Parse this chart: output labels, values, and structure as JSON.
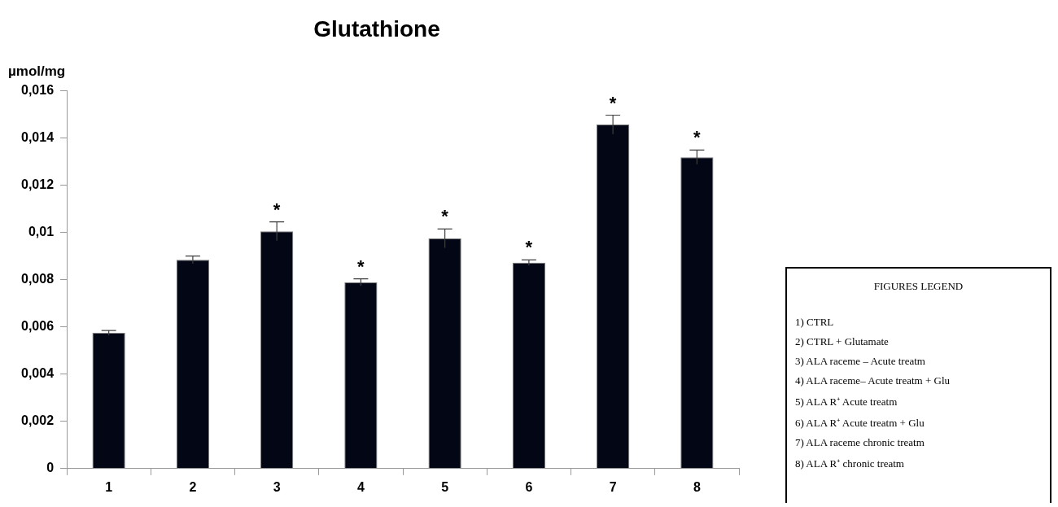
{
  "chart_data": {
    "type": "bar",
    "title": "Glutathione",
    "ylabel": "µmol/mg",
    "categories": [
      "1",
      "2",
      "3",
      "4",
      "5",
      "6",
      "7",
      "8"
    ],
    "values": [
      0.00575,
      0.00884,
      0.01005,
      0.00789,
      0.00975,
      0.00872,
      0.01457,
      0.01319
    ],
    "errors": [
      0.0001,
      0.00016,
      0.0004,
      0.00015,
      0.0004,
      0.00012,
      0.0004,
      0.0003
    ],
    "color": "#020615",
    "ylim": [
      0,
      0.016
    ],
    "yticks": [
      {
        "value": 0,
        "label": "0"
      },
      {
        "value": 0.002,
        "label": "0,002"
      },
      {
        "value": 0.004,
        "label": "0,004"
      },
      {
        "value": 0.006,
        "label": "0,006"
      },
      {
        "value": 0.008,
        "label": "0,008"
      },
      {
        "value": 0.01,
        "label": "0,01"
      },
      {
        "value": 0.012,
        "label": "0,012"
      },
      {
        "value": 0.014,
        "label": "0,014"
      },
      {
        "value": 0.016,
        "label": "0,016"
      }
    ],
    "grid": false,
    "legend": false,
    "annotations": [
      {
        "text": "*",
        "x": "3",
        "y": 0.01005
      },
      {
        "text": "*",
        "x": "4",
        "y": 0.00789
      },
      {
        "text": "*",
        "x": "5",
        "y": 0.00975
      },
      {
        "text": "*",
        "x": "6",
        "y": 0.00872
      },
      {
        "text": "*",
        "x": "7",
        "y": 0.01457
      },
      {
        "text": "*",
        "x": "8",
        "y": 0.01319
      },
      "FIGURES LEGEND",
      "1) CTRL",
      "2) CTRL + Glutamate",
      "3) ALA raceme – Acute treatm",
      "4) ALA raceme– Acute treatm + Glu",
      "5) ALA R⁺ Acute treatm",
      "6) ALA R⁺ Acute treatm + Glu",
      "7) ALA raceme  chronic treatm",
      "8) ALA R⁺  chronic treatm"
    ]
  }
}
